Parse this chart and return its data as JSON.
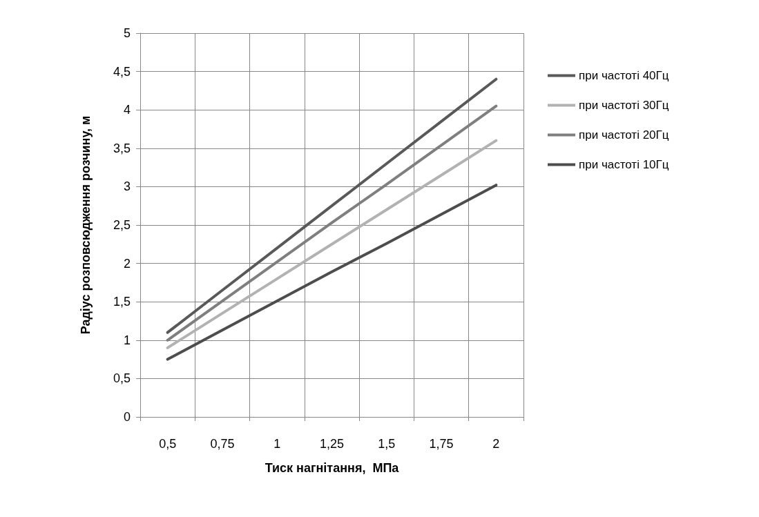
{
  "chart_data": {
    "type": "line",
    "xlabel": "Тиск нагнітання,  МПа",
    "ylabel": "Радіус розповсюдження розчину, м",
    "categories": [
      "0,5",
      "0,75",
      "1",
      "1,25",
      "1,5",
      "1,75",
      "2"
    ],
    "series": [
      {
        "name": "при частоті 40Гц",
        "color": "#595959",
        "values": [
          1.1,
          1.65,
          2.2,
          2.75,
          3.3,
          3.85,
          4.4
        ]
      },
      {
        "name": "при частоті 30Гц",
        "color": "#b2b2b2",
        "values": [
          0.9,
          1.35,
          1.8,
          2.25,
          2.7,
          3.15,
          3.6
        ]
      },
      {
        "name": "при частоті 20Гц",
        "color": "#7f7f7f",
        "values": [
          1.0,
          1.51,
          2.02,
          2.53,
          3.03,
          3.54,
          4.05
        ]
      },
      {
        "name": "при частоті 10Гц",
        "color": "#4d4d4d",
        "values": [
          0.75,
          1.13,
          1.51,
          1.89,
          2.26,
          2.64,
          3.02
        ]
      }
    ],
    "ylim": [
      0,
      5
    ],
    "yticks": [
      0,
      {
        "value": 0.5,
        "label": "0,5"
      },
      1,
      {
        "value": 1.5,
        "label": "1,5"
      },
      2,
      {
        "value": 2.5,
        "label": "2,5"
      },
      3,
      {
        "value": 3.5,
        "label": "3,5"
      },
      4,
      {
        "value": 4.5,
        "label": "4,5"
      },
      5
    ],
    "grid": true,
    "legend": "right",
    "marker": "none",
    "line_style": "solid"
  }
}
